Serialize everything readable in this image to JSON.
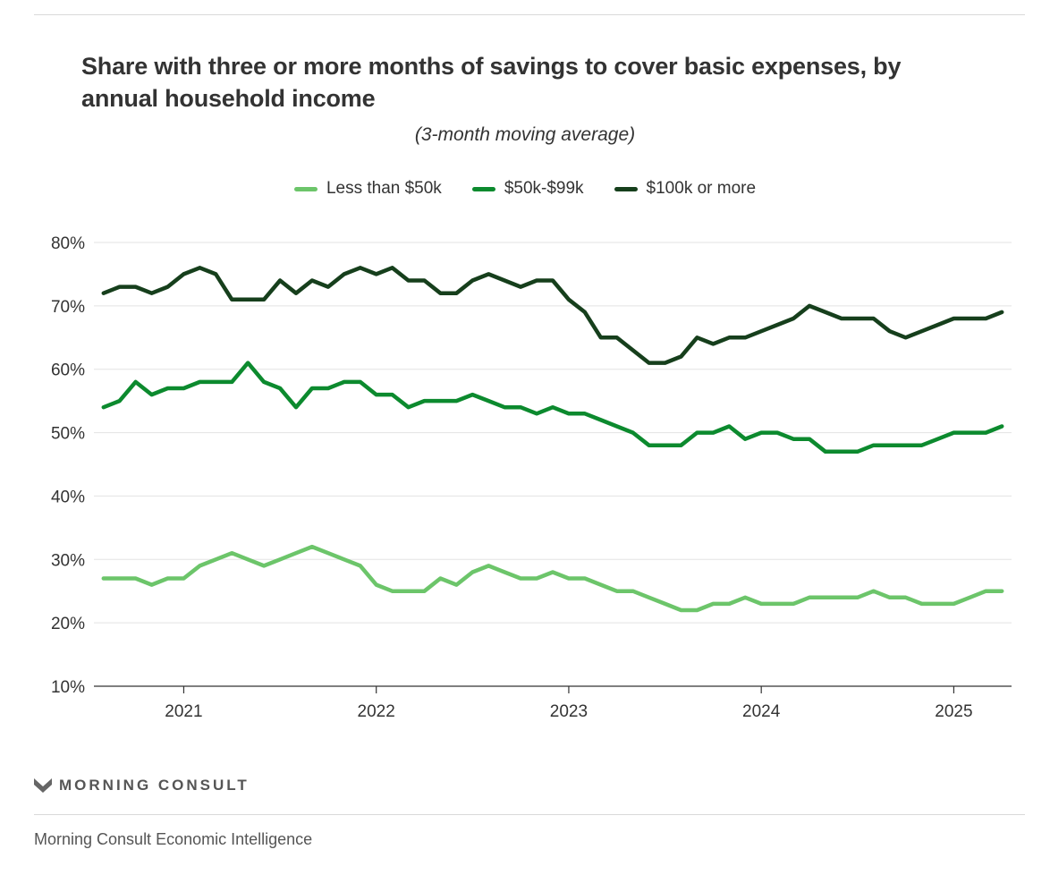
{
  "title": "Share with three or more months of savings to cover basic expenses, by annual household income",
  "subtitle": "(3-month moving average)",
  "footer": {
    "logo_text": "MORNING CONSULT",
    "source": "Morning Consult Economic Intelligence"
  },
  "chart_data": {
    "type": "line",
    "title": "Share with three or more months of savings to cover basic expenses, by annual household income",
    "subtitle": "(3-month moving average)",
    "xlabel": "",
    "ylabel": "",
    "ylim": [
      10,
      80
    ],
    "yticks": [
      "10%",
      "20%",
      "30%",
      "40%",
      "50%",
      "60%",
      "70%",
      "80%"
    ],
    "xticks": [
      "2021",
      "2022",
      "2023",
      "2024",
      "2025"
    ],
    "xlim": [
      "2020-08",
      "2025-04"
    ],
    "grid": true,
    "legend_position": "top-center",
    "x": [
      "2020-08",
      "2020-09",
      "2020-10",
      "2020-11",
      "2020-12",
      "2021-01",
      "2021-02",
      "2021-03",
      "2021-04",
      "2021-05",
      "2021-06",
      "2021-07",
      "2021-08",
      "2021-09",
      "2021-10",
      "2021-11",
      "2021-12",
      "2022-01",
      "2022-02",
      "2022-03",
      "2022-04",
      "2022-05",
      "2022-06",
      "2022-07",
      "2022-08",
      "2022-09",
      "2022-10",
      "2022-11",
      "2022-12",
      "2023-01",
      "2023-02",
      "2023-03",
      "2023-04",
      "2023-05",
      "2023-06",
      "2023-07",
      "2023-08",
      "2023-09",
      "2023-10",
      "2023-11",
      "2023-12",
      "2024-01",
      "2024-02",
      "2024-03",
      "2024-04",
      "2024-05",
      "2024-06",
      "2024-07",
      "2024-08",
      "2024-09",
      "2024-10",
      "2024-11",
      "2024-12",
      "2025-01",
      "2025-02",
      "2025-03",
      "2025-04"
    ],
    "series": [
      {
        "name": "Less than $50k",
        "color": "#6cc56a",
        "values": [
          27,
          27,
          27,
          26,
          27,
          27,
          29,
          30,
          31,
          30,
          29,
          30,
          31,
          32,
          31,
          30,
          29,
          26,
          25,
          25,
          25,
          27,
          26,
          28,
          29,
          28,
          27,
          27,
          28,
          27,
          27,
          26,
          25,
          25,
          24,
          23,
          22,
          22,
          23,
          23,
          24,
          23,
          23,
          23,
          24,
          24,
          24,
          24,
          25,
          24,
          24,
          23,
          23,
          23,
          24,
          25,
          25
        ]
      },
      {
        "name": "$50k-$99k",
        "color": "#0c8a2e",
        "values": [
          54,
          55,
          58,
          56,
          57,
          57,
          58,
          58,
          58,
          61,
          58,
          57,
          54,
          57,
          57,
          58,
          58,
          56,
          56,
          54,
          55,
          55,
          55,
          56,
          55,
          54,
          54,
          53,
          54,
          53,
          53,
          52,
          51,
          50,
          48,
          48,
          48,
          50,
          50,
          51,
          49,
          50,
          50,
          49,
          49,
          47,
          47,
          47,
          48,
          48,
          48,
          48,
          49,
          50,
          50,
          50,
          51
        ]
      },
      {
        "name": "$100k or more",
        "color": "#163f1c",
        "values": [
          72,
          73,
          73,
          72,
          73,
          75,
          76,
          75,
          71,
          71,
          71,
          74,
          72,
          74,
          73,
          75,
          76,
          75,
          76,
          74,
          74,
          72,
          72,
          74,
          75,
          74,
          73,
          74,
          74,
          71,
          69,
          65,
          65,
          63,
          61,
          61,
          62,
          65,
          64,
          65,
          65,
          66,
          67,
          68,
          70,
          69,
          68,
          68,
          68,
          66,
          65,
          66,
          67,
          68,
          68,
          68,
          69
        ]
      }
    ]
  }
}
